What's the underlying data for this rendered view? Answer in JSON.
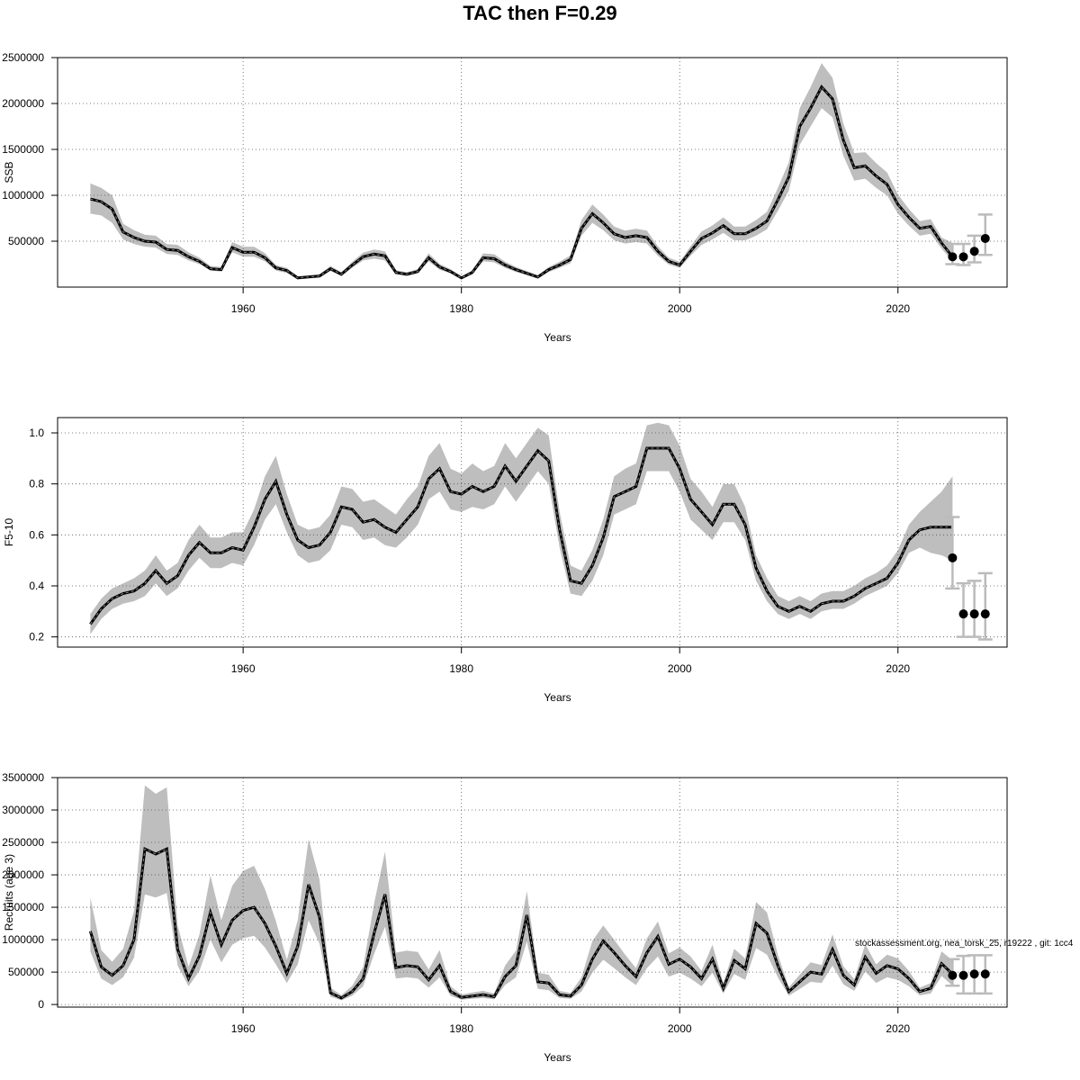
{
  "title": "TAC then F=0.29",
  "footnote": "stockassessment.org, nea_torsk_25, r19222 , git: 1cc4",
  "colors": {
    "band": "#bebebe",
    "line": "#000000",
    "forecast": "#bbbbbb",
    "grid": "#555555"
  },
  "chart_data": [
    {
      "type": "line",
      "ylabel": "SSB",
      "xlabel": "Years",
      "xlim": [
        1943,
        2030
      ],
      "ylim": [
        0,
        2500000
      ],
      "xticks": [
        1960,
        1980,
        2000,
        2020
      ],
      "yticks": [
        500000,
        1000000,
        1500000,
        2000000,
        2500000
      ],
      "ytick_labels": [
        "500000",
        "1000000",
        "1500000",
        "2000000",
        "2500000"
      ],
      "x": [
        1946,
        1947,
        1948,
        1949,
        1950,
        1951,
        1952,
        1953,
        1954,
        1955,
        1956,
        1957,
        1958,
        1959,
        1960,
        1961,
        1962,
        1963,
        1964,
        1965,
        1966,
        1967,
        1968,
        1969,
        1970,
        1971,
        1972,
        1973,
        1974,
        1975,
        1976,
        1977,
        1978,
        1979,
        1980,
        1981,
        1982,
        1983,
        1984,
        1985,
        1986,
        1987,
        1988,
        1989,
        1990,
        1991,
        1992,
        1993,
        1994,
        1995,
        1996,
        1997,
        1998,
        1999,
        2000,
        2001,
        2002,
        2003,
        2004,
        2005,
        2006,
        2007,
        2008,
        2009,
        2010,
        2011,
        2012,
        2013,
        2014,
        2015,
        2016,
        2017,
        2018,
        2019,
        2020,
        2021,
        2022,
        2023,
        2024,
        2025
      ],
      "values": [
        960000,
        930000,
        850000,
        600000,
        540000,
        500000,
        490000,
        410000,
        400000,
        330000,
        280000,
        200000,
        190000,
        430000,
        380000,
        380000,
        320000,
        210000,
        180000,
        100000,
        110000,
        120000,
        200000,
        140000,
        240000,
        330000,
        360000,
        340000,
        160000,
        140000,
        170000,
        320000,
        220000,
        170000,
        100000,
        160000,
        320000,
        310000,
        240000,
        190000,
        150000,
        110000,
        190000,
        240000,
        300000,
        640000,
        800000,
        700000,
        580000,
        540000,
        560000,
        540000,
        390000,
        280000,
        240000,
        390000,
        530000,
        590000,
        670000,
        580000,
        580000,
        640000,
        720000,
        950000,
        1200000,
        1750000,
        1950000,
        2180000,
        2050000,
        1600000,
        1300000,
        1320000,
        1210000,
        1120000,
        900000,
        760000,
        640000,
        660000,
        480000,
        330000
      ],
      "lower": [
        800000,
        780000,
        700000,
        520000,
        470000,
        440000,
        430000,
        360000,
        350000,
        290000,
        250000,
        180000,
        170000,
        380000,
        330000,
        330000,
        280000,
        180000,
        155000,
        90000,
        95000,
        105000,
        175000,
        120000,
        210000,
        290000,
        310000,
        290000,
        140000,
        120000,
        150000,
        280000,
        190000,
        150000,
        85000,
        140000,
        280000,
        270000,
        210000,
        165000,
        130000,
        95000,
        165000,
        210000,
        260000,
        560000,
        700000,
        620000,
        510000,
        475000,
        490000,
        475000,
        340000,
        245000,
        210000,
        340000,
        460000,
        520000,
        590000,
        510000,
        510000,
        560000,
        630000,
        830000,
        1050000,
        1550000,
        1750000,
        1950000,
        1850000,
        1430000,
        1160000,
        1180000,
        1080000,
        1000000,
        800000,
        670000,
        560000,
        580000,
        420000,
        280000
      ],
      "upper": [
        1130000,
        1080000,
        1000000,
        690000,
        620000,
        570000,
        560000,
        470000,
        460000,
        380000,
        320000,
        230000,
        220000,
        490000,
        440000,
        440000,
        370000,
        240000,
        210000,
        115000,
        128000,
        140000,
        230000,
        162000,
        275000,
        375000,
        410000,
        390000,
        184000,
        162000,
        196000,
        368000,
        252000,
        196000,
        116000,
        184000,
        368000,
        358000,
        276000,
        220000,
        174000,
        128000,
        220000,
        277000,
        345000,
        730000,
        900000,
        790000,
        660000,
        615000,
        636000,
        615000,
        445000,
        320000,
        275000,
        445000,
        605000,
        672000,
        760000,
        660000,
        660000,
        730000,
        820000,
        1080000,
        1360000,
        1950000,
        2180000,
        2440000,
        2280000,
        1780000,
        1460000,
        1470000,
        1350000,
        1250000,
        1010000,
        850000,
        720000,
        740000,
        540000,
        480000
      ],
      "forecast": {
        "x": [
          2025,
          2026,
          2027,
          2028
        ],
        "values": [
          330000,
          330000,
          390000,
          530000
        ],
        "lower": [
          250000,
          240000,
          270000,
          350000
        ],
        "upper": [
          470000,
          470000,
          560000,
          790000
        ]
      }
    },
    {
      "type": "line",
      "ylabel": "F5-10",
      "xlabel": "Years",
      "xlim": [
        1943,
        2030
      ],
      "ylim": [
        0.16,
        1.06
      ],
      "xticks": [
        1960,
        1980,
        2000,
        2020
      ],
      "yticks": [
        0.2,
        0.4,
        0.6,
        0.8,
        1.0
      ],
      "ytick_labels": [
        "0.2",
        "0.4",
        "0.6",
        "0.8",
        "1.0"
      ],
      "x": [
        1946,
        1947,
        1948,
        1949,
        1950,
        1951,
        1952,
        1953,
        1954,
        1955,
        1956,
        1957,
        1958,
        1959,
        1960,
        1961,
        1962,
        1963,
        1964,
        1965,
        1966,
        1967,
        1968,
        1969,
        1970,
        1971,
        1972,
        1973,
        1974,
        1975,
        1976,
        1977,
        1978,
        1979,
        1980,
        1981,
        1982,
        1983,
        1984,
        1985,
        1986,
        1987,
        1988,
        1989,
        1990,
        1991,
        1992,
        1993,
        1994,
        1995,
        1996,
        1997,
        1998,
        1999,
        2000,
        2001,
        2002,
        2003,
        2004,
        2005,
        2006,
        2007,
        2008,
        2009,
        2010,
        2011,
        2012,
        2013,
        2014,
        2015,
        2016,
        2017,
        2018,
        2019,
        2020,
        2021,
        2022,
        2023,
        2024,
        2025
      ],
      "values": [
        0.25,
        0.31,
        0.35,
        0.37,
        0.38,
        0.41,
        0.46,
        0.41,
        0.44,
        0.52,
        0.57,
        0.53,
        0.53,
        0.55,
        0.54,
        0.63,
        0.74,
        0.81,
        0.68,
        0.58,
        0.55,
        0.56,
        0.61,
        0.71,
        0.7,
        0.65,
        0.66,
        0.63,
        0.61,
        0.66,
        0.71,
        0.82,
        0.86,
        0.77,
        0.76,
        0.79,
        0.77,
        0.79,
        0.87,
        0.81,
        0.87,
        0.93,
        0.89,
        0.62,
        0.42,
        0.41,
        0.48,
        0.59,
        0.75,
        0.77,
        0.79,
        0.94,
        0.94,
        0.94,
        0.86,
        0.74,
        0.69,
        0.64,
        0.72,
        0.72,
        0.64,
        0.47,
        0.38,
        0.32,
        0.3,
        0.32,
        0.3,
        0.33,
        0.34,
        0.34,
        0.36,
        0.39,
        0.41,
        0.43,
        0.49,
        0.58,
        0.62,
        0.63,
        0.63,
        0.63
      ],
      "lower": [
        0.21,
        0.27,
        0.31,
        0.33,
        0.34,
        0.36,
        0.41,
        0.36,
        0.39,
        0.46,
        0.51,
        0.47,
        0.47,
        0.49,
        0.48,
        0.56,
        0.66,
        0.72,
        0.61,
        0.52,
        0.49,
        0.5,
        0.54,
        0.64,
        0.63,
        0.58,
        0.59,
        0.56,
        0.55,
        0.59,
        0.64,
        0.74,
        0.77,
        0.7,
        0.69,
        0.71,
        0.7,
        0.72,
        0.79,
        0.73,
        0.79,
        0.85,
        0.8,
        0.55,
        0.37,
        0.36,
        0.42,
        0.52,
        0.68,
        0.7,
        0.72,
        0.85,
        0.85,
        0.85,
        0.77,
        0.66,
        0.62,
        0.58,
        0.65,
        0.65,
        0.58,
        0.42,
        0.34,
        0.29,
        0.27,
        0.29,
        0.27,
        0.3,
        0.31,
        0.31,
        0.33,
        0.36,
        0.38,
        0.4,
        0.45,
        0.53,
        0.55,
        0.53,
        0.52,
        0.5
      ],
      "upper": [
        0.29,
        0.35,
        0.39,
        0.41,
        0.43,
        0.46,
        0.52,
        0.46,
        0.49,
        0.58,
        0.64,
        0.59,
        0.59,
        0.61,
        0.61,
        0.7,
        0.83,
        0.91,
        0.76,
        0.64,
        0.62,
        0.63,
        0.68,
        0.79,
        0.78,
        0.73,
        0.74,
        0.71,
        0.68,
        0.74,
        0.79,
        0.91,
        0.96,
        0.86,
        0.84,
        0.88,
        0.85,
        0.87,
        0.96,
        0.9,
        0.96,
        1.02,
        0.99,
        0.69,
        0.48,
        0.46,
        0.54,
        0.66,
        0.83,
        0.86,
        0.88,
        1.03,
        1.04,
        1.03,
        0.95,
        0.82,
        0.77,
        0.71,
        0.8,
        0.8,
        0.71,
        0.52,
        0.43,
        0.36,
        0.34,
        0.36,
        0.34,
        0.37,
        0.38,
        0.38,
        0.4,
        0.43,
        0.45,
        0.48,
        0.54,
        0.64,
        0.69,
        0.73,
        0.77,
        0.83
      ],
      "forecast": {
        "x": [
          2025,
          2026,
          2027,
          2028
        ],
        "values": [
          0.51,
          0.29,
          0.29,
          0.29
        ],
        "lower": [
          0.39,
          0.2,
          0.2,
          0.19
        ],
        "upper": [
          0.67,
          0.41,
          0.42,
          0.45
        ]
      }
    },
    {
      "type": "line",
      "ylabel": "Recruits (age 3)",
      "xlabel": "Years",
      "xlim": [
        1943,
        2030
      ],
      "ylim": [
        -40000,
        3500000
      ],
      "xticks": [
        1960,
        1980,
        2000,
        2020
      ],
      "yticks": [
        0,
        500000,
        1000000,
        1500000,
        2000000,
        2500000,
        3000000,
        3500000
      ],
      "ytick_labels": [
        "0",
        "500000",
        "1000000",
        "1500000",
        "2000000",
        "2500000",
        "3000000",
        "3500000"
      ],
      "x": [
        1946,
        1947,
        1948,
        1949,
        1950,
        1951,
        1952,
        1953,
        1954,
        1955,
        1956,
        1957,
        1958,
        1959,
        1960,
        1961,
        1962,
        1963,
        1964,
        1965,
        1966,
        1967,
        1968,
        1969,
        1970,
        1971,
        1972,
        1973,
        1974,
        1975,
        1976,
        1977,
        1978,
        1979,
        1980,
        1981,
        1982,
        1983,
        1984,
        1985,
        1986,
        1987,
        1988,
        1989,
        1990,
        1991,
        1992,
        1993,
        1994,
        1995,
        1996,
        1997,
        1998,
        1999,
        2000,
        2001,
        2002,
        2003,
        2004,
        2005,
        2006,
        2007,
        2008,
        2009,
        2010,
        2011,
        2012,
        2013,
        2014,
        2015,
        2016,
        2017,
        2018,
        2019,
        2020,
        2021,
        2022,
        2023,
        2024,
        2025
      ],
      "values": [
        1130000,
        580000,
        450000,
        600000,
        1000000,
        2400000,
        2320000,
        2400000,
        850000,
        400000,
        750000,
        1420000,
        920000,
        1300000,
        1450000,
        1500000,
        1250000,
        900000,
        480000,
        900000,
        1850000,
        1350000,
        180000,
        100000,
        200000,
        400000,
        1100000,
        1700000,
        570000,
        600000,
        580000,
        380000,
        600000,
        200000,
        110000,
        130000,
        150000,
        120000,
        430000,
        600000,
        1380000,
        350000,
        330000,
        150000,
        130000,
        300000,
        700000,
        980000,
        800000,
        600000,
        430000,
        800000,
        1050000,
        620000,
        700000,
        580000,
        400000,
        700000,
        250000,
        680000,
        550000,
        1250000,
        1100000,
        600000,
        200000,
        350000,
        500000,
        470000,
        850000,
        450000,
        300000,
        730000,
        480000,
        600000,
        550000,
        400000,
        200000,
        250000,
        630000,
        470000
      ],
      "lower": [
        820000,
        400000,
        300000,
        420000,
        720000,
        1700000,
        1650000,
        1720000,
        600000,
        280000,
        520000,
        1000000,
        650000,
        920000,
        1020000,
        1060000,
        880000,
        620000,
        330000,
        620000,
        1300000,
        940000,
        120000,
        65000,
        135000,
        280000,
        780000,
        1200000,
        400000,
        420000,
        400000,
        260000,
        420000,
        135000,
        75000,
        88000,
        100000,
        80000,
        300000,
        420000,
        970000,
        240000,
        220000,
        100000,
        88000,
        200000,
        490000,
        690000,
        560000,
        420000,
        300000,
        560000,
        740000,
        430000,
        490000,
        400000,
        280000,
        490000,
        170000,
        470000,
        380000,
        870000,
        770000,
        420000,
        135000,
        240000,
        350000,
        330000,
        600000,
        310000,
        210000,
        510000,
        330000,
        420000,
        380000,
        280000,
        140000,
        170000,
        440000,
        290000
      ],
      "upper": [
        1650000,
        840000,
        660000,
        860000,
        1440000,
        3380000,
        3250000,
        3350000,
        1220000,
        580000,
        1080000,
        1990000,
        1300000,
        1830000,
        2060000,
        2140000,
        1780000,
        1290000,
        690000,
        1300000,
        2550000,
        1930000,
        260000,
        145000,
        290000,
        580000,
        1560000,
        2360000,
        800000,
        830000,
        810000,
        540000,
        840000,
        280000,
        155000,
        185000,
        210000,
        170000,
        600000,
        830000,
        1750000,
        490000,
        460000,
        210000,
        180000,
        420000,
        980000,
        1220000,
        1000000,
        770000,
        560000,
        1020000,
        1280000,
        790000,
        880000,
        740000,
        520000,
        920000,
        330000,
        860000,
        710000,
        1580000,
        1420000,
        770000,
        265000,
        460000,
        650000,
        610000,
        1080000,
        590000,
        390000,
        930000,
        620000,
        770000,
        710000,
        520000,
        260000,
        330000,
        820000,
        680000
      ],
      "forecast": {
        "x": [
          2025,
          2026,
          2027,
          2028
        ],
        "values": [
          450000,
          450000,
          470000,
          470000
        ],
        "lower": [
          290000,
          170000,
          170000,
          170000
        ],
        "upper": [
          700000,
          750000,
          760000,
          760000
        ]
      }
    }
  ]
}
